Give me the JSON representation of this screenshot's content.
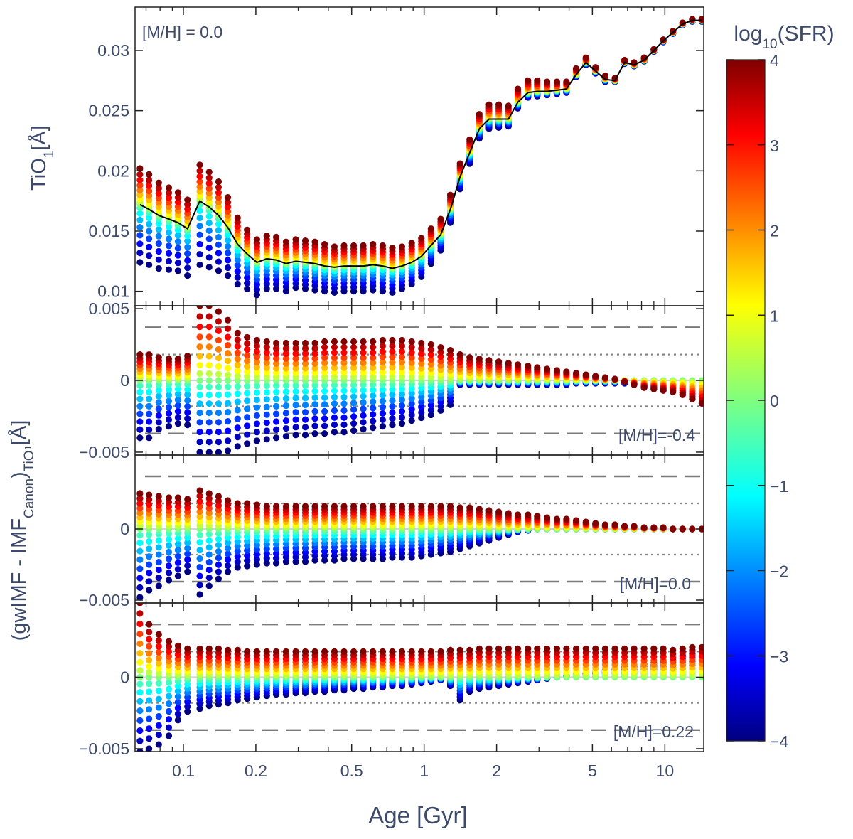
{
  "chart_data": {
    "type": "scatter",
    "x_label": "Age [Gyr]",
    "x_scale": "log",
    "x_range": [
      0.063,
      14.5
    ],
    "x_ticks": [
      {
        "value": 0.1,
        "label": "0.1"
      },
      {
        "value": 0.2,
        "label": "0.2"
      },
      {
        "value": 0.5,
        "label": "0.5"
      },
      {
        "value": 1,
        "label": "1"
      },
      {
        "value": 2,
        "label": "2"
      },
      {
        "value": 5,
        "label": "5"
      },
      {
        "value": 10,
        "label": "10"
      }
    ],
    "ages": [
      0.066,
      0.072,
      0.079,
      0.087,
      0.095,
      0.104,
      0.117,
      0.128,
      0.14,
      0.153,
      0.168,
      0.184,
      0.202,
      0.222,
      0.243,
      0.267,
      0.293,
      0.321,
      0.352,
      0.386,
      0.424,
      0.465,
      0.51,
      0.559,
      0.613,
      0.673,
      0.738,
      0.809,
      0.888,
      0.974,
      1.068,
      1.172,
      1.285,
      1.41,
      1.546,
      1.696,
      1.861,
      2.041,
      2.24,
      2.45,
      2.7,
      2.95,
      3.24,
      3.56,
      3.9,
      4.28,
      4.7,
      5.15,
      5.65,
      6.2,
      6.8,
      7.45,
      8.2,
      9.0,
      9.85,
      10.8,
      11.85,
      13.0,
      14.25
    ],
    "colorbar": {
      "label": "log10(SFR)",
      "range": [
        -4,
        4
      ],
      "ticks": [
        {
          "value": 4,
          "label": "4"
        },
        {
          "value": 3,
          "label": "3"
        },
        {
          "value": 2,
          "label": "2"
        },
        {
          "value": 1,
          "label": "1"
        },
        {
          "value": 0,
          "label": "0"
        },
        {
          "value": -1,
          "label": "−1"
        },
        {
          "value": -2,
          "label": "−2"
        },
        {
          "value": -3,
          "label": "−3"
        },
        {
          "value": -4,
          "label": "−4"
        }
      ]
    },
    "panels": [
      {
        "id": "tio1",
        "y_label": "TiO1[Å]",
        "y_range": [
          0.0088,
          0.0336
        ],
        "y_ticks": [
          {
            "value": 0.01,
            "label": "0.01"
          },
          {
            "value": 0.015,
            "label": "0.015"
          },
          {
            "value": 0.02,
            "label": "0.02"
          },
          {
            "value": 0.025,
            "label": "0.025"
          },
          {
            "value": 0.03,
            "label": "0.03"
          }
        ],
        "annotation": "[M/H] = 0.0",
        "canonical_line_color": "#000000"
      },
      {
        "id": "diff-m04",
        "y_range": [
          -0.0052,
          0.0052
        ],
        "y_ticks": [
          {
            "value": -0.005,
            "label": "−0.005"
          },
          {
            "value": 0,
            "label": "0"
          },
          {
            "value": 0.005,
            "label": "0.005"
          }
        ],
        "annotation": "[M/H]=-0.4",
        "dashed_levels": [
          -0.0037,
          0.0037
        ],
        "dotted_levels": [
          -0.0018,
          0.0018
        ]
      },
      {
        "id": "diff-000",
        "y_range": [
          -0.0052,
          0.0052
        ],
        "y_ticks": [
          {
            "value": -0.005,
            "label": "−0.005"
          },
          {
            "value": 0,
            "label": "0"
          }
        ],
        "annotation": "[M/H]=0.0",
        "dashed_levels": [
          -0.0037,
          0.0037
        ],
        "dotted_levels": [
          -0.0018,
          0.0018
        ]
      },
      {
        "id": "diff-022",
        "y_range": [
          -0.0052,
          0.0052
        ],
        "y_ticks": [
          {
            "value": -0.005,
            "label": "−0.005"
          },
          {
            "value": 0,
            "label": "0"
          }
        ],
        "annotation": "[M/H]=0.22",
        "dashed_levels": [
          -0.0037,
          0.0037
        ],
        "dotted_levels": [
          -0.0018,
          0.0018
        ]
      }
    ],
    "shared_y_label": "(gwIMF - IMFCanon)TiO1[Å]",
    "sfr_levels": [
      -4,
      -3.5,
      -3,
      -2.5,
      -2,
      -1.5,
      -1,
      -0.5,
      0,
      0.5,
      1,
      1.5,
      2,
      2.5,
      3,
      3.5,
      4
    ],
    "tio1_canonical": [
      0.0172,
      0.0168,
      0.0163,
      0.016,
      0.0157,
      0.0152,
      0.0175,
      0.017,
      0.0163,
      0.0153,
      0.0139,
      0.0131,
      0.0124,
      0.0127,
      0.0126,
      0.0123,
      0.0125,
      0.0124,
      0.0123,
      0.0121,
      0.012,
      0.0121,
      0.0121,
      0.0121,
      0.0122,
      0.0121,
      0.0119,
      0.0121,
      0.0124,
      0.0129,
      0.0138,
      0.0147,
      0.0168,
      0.0195,
      0.0215,
      0.0235,
      0.0243,
      0.0243,
      0.0243,
      0.0257,
      0.0265,
      0.0266,
      0.0266,
      0.0267,
      0.0268,
      0.028,
      0.029,
      0.0283,
      0.0276,
      0.0275,
      0.029,
      0.0288,
      0.0292,
      0.03,
      0.0308,
      0.0315,
      0.0322,
      0.0325,
      0.0325
    ],
    "tio1_spread_high": [
      0.003,
      0.0029,
      0.0027,
      0.0026,
      0.0025,
      0.0024,
      0.003,
      0.0029,
      0.0028,
      0.0025,
      0.0022,
      0.002,
      0.0019,
      0.0019,
      0.0019,
      0.0018,
      0.0018,
      0.0018,
      0.0018,
      0.0018,
      0.0017,
      0.0017,
      0.0017,
      0.0017,
      0.0017,
      0.0017,
      0.0017,
      0.0016,
      0.0016,
      0.0015,
      0.0014,
      0.0013,
      0.0012,
      0.0011,
      0.0011,
      0.0012,
      0.0012,
      0.0012,
      0.0011,
      0.0011,
      0.001,
      0.0009,
      0.0008,
      0.0007,
      0.0006,
      0.0005,
      0.0004,
      0.0003,
      0.0003,
      0.0002,
      0.0002,
      0.0002,
      0.0002,
      0.0001,
      0.0001,
      0.0001,
      0.0001,
      0.0001,
      0.0001
    ],
    "tio1_spread_low": [
      0.0048,
      0.0046,
      0.0044,
      0.0042,
      0.004,
      0.0039,
      0.0053,
      0.005,
      0.0046,
      0.004,
      0.0033,
      0.0029,
      0.0027,
      0.0025,
      0.0024,
      0.0023,
      0.0022,
      0.0022,
      0.0022,
      0.0021,
      0.0021,
      0.0021,
      0.0021,
      0.0021,
      0.0021,
      0.0021,
      0.002,
      0.0019,
      0.0018,
      0.0017,
      0.0015,
      0.0013,
      0.0011,
      0.001,
      0.0009,
      0.0008,
      0.0008,
      0.0007,
      0.0006,
      0.0005,
      0.0004,
      0.0004,
      0.0003,
      0.0003,
      0.0003,
      0.0002,
      0.0002,
      0.0002,
      0.0002,
      0.0001,
      0.0001,
      0.0001,
      0.0001,
      0.0001,
      0.0001,
      0.0001,
      0.0001,
      0.0001,
      0.0001
    ],
    "diff_high": [
      [
        0.0018,
        0.0018,
        0.0016,
        0.0015,
        0.0015,
        0.0017,
        0.0052,
        0.0052,
        0.0048,
        0.0042,
        0.0033,
        0.003,
        0.0028,
        0.0027,
        0.0026,
        0.0026,
        0.0026,
        0.0026,
        0.0026,
        0.0027,
        0.0027,
        0.0027,
        0.0027,
        0.0027,
        0.0027,
        0.0028,
        0.0028,
        0.0028,
        0.0027,
        0.0026,
        0.0025,
        0.0023,
        0.0021,
        0.0018,
        0.0016,
        0.0015,
        0.0014,
        0.0013,
        0.0012,
        0.0011,
        0.001,
        0.0009,
        0.0008,
        0.0007,
        0.0006,
        0.0005,
        0.0004,
        0.0003,
        0.0002,
        0.0001,
        -0.0001,
        -0.0003,
        -0.0005,
        -0.0006,
        -0.0007,
        -0.0008,
        -0.001,
        -0.0013,
        -0.0016
      ],
      [
        0.0025,
        0.0024,
        0.0023,
        0.0022,
        0.0022,
        0.0021,
        0.0027,
        0.0025,
        0.0023,
        0.002,
        0.0018,
        0.0018,
        0.0017,
        0.0016,
        0.0016,
        0.0016,
        0.0016,
        0.0016,
        0.0016,
        0.0016,
        0.0016,
        0.0016,
        0.0016,
        0.0016,
        0.0016,
        0.0016,
        0.0016,
        0.0016,
        0.0016,
        0.0016,
        0.0016,
        0.0016,
        0.0016,
        0.0015,
        0.0015,
        0.0014,
        0.0013,
        0.0012,
        0.0011,
        0.001,
        0.001,
        0.0009,
        0.0008,
        0.0007,
        0.0007,
        0.0006,
        0.0005,
        0.0004,
        0.0003,
        0.0003,
        0.0002,
        0.0002,
        0.0001,
        0.0001,
        0.0001,
        0.0,
        0.0,
        0.0,
        0.0
      ],
      [
        0.0052,
        0.0037,
        0.003,
        0.0025,
        0.0022,
        0.002,
        0.002,
        0.002,
        0.002,
        0.0019,
        0.0019,
        0.0018,
        0.0018,
        0.0018,
        0.0018,
        0.0018,
        0.0018,
        0.0018,
        0.0018,
        0.0018,
        0.0018,
        0.0018,
        0.0018,
        0.0018,
        0.0018,
        0.0018,
        0.0018,
        0.0018,
        0.0018,
        0.0018,
        0.0018,
        0.0018,
        0.0019,
        0.0019,
        0.0019,
        0.002,
        0.002,
        0.002,
        0.002,
        0.002,
        0.002,
        0.002,
        0.002,
        0.002,
        0.002,
        0.002,
        0.002,
        0.002,
        0.002,
        0.002,
        0.002,
        0.002,
        0.002,
        0.002,
        0.002,
        0.0019,
        0.002,
        0.0021,
        0.0021
      ]
    ],
    "diff_low": [
      [
        -0.004,
        -0.004,
        -0.0034,
        -0.0032,
        -0.003,
        -0.0031,
        -0.005,
        -0.005,
        -0.005,
        -0.0049,
        -0.0046,
        -0.0044,
        -0.0042,
        -0.0041,
        -0.004,
        -0.0039,
        -0.0038,
        -0.0038,
        -0.0037,
        -0.0037,
        -0.0036,
        -0.0036,
        -0.0035,
        -0.0034,
        -0.0033,
        -0.0032,
        -0.0031,
        -0.003,
        -0.0028,
        -0.0026,
        -0.0024,
        -0.0021,
        -0.0017,
        -0.0003,
        -0.0003,
        -0.0003,
        -0.0003,
        -0.0003,
        -0.0003,
        -0.0003,
        -0.0003,
        -0.0003,
        -0.0003,
        -0.0003,
        -0.0003,
        -0.0002,
        -0.0002,
        -0.0002,
        -0.0002,
        -0.0002,
        -0.0002,
        -0.0003,
        -0.0005,
        -0.0006,
        -0.0007,
        -0.0008,
        -0.001,
        -0.0013,
        -0.0016
      ],
      [
        -0.0048,
        -0.0043,
        -0.004,
        -0.0036,
        -0.0033,
        -0.003,
        -0.0046,
        -0.004,
        -0.0035,
        -0.003,
        -0.0027,
        -0.0026,
        -0.0025,
        -0.0024,
        -0.0024,
        -0.0023,
        -0.0023,
        -0.0023,
        -0.0022,
        -0.0022,
        -0.0022,
        -0.0021,
        -0.0021,
        -0.0021,
        -0.0021,
        -0.0021,
        -0.002,
        -0.002,
        -0.002,
        -0.0019,
        -0.0018,
        -0.0017,
        -0.0016,
        -0.0014,
        -0.0012,
        -0.001,
        -0.0008,
        -0.0006,
        -0.0004,
        -0.0002,
        -0.0001,
        0.0,
        0.0,
        0.0,
        0.0,
        0.0,
        0.0,
        0.0,
        0.0,
        0.0,
        0.0,
        0.0,
        0.0,
        0.0,
        0.0,
        0.0,
        0.0,
        0.0,
        0.0
      ],
      [
        -0.0052,
        -0.005,
        -0.0047,
        -0.0041,
        -0.003,
        -0.0024,
        -0.0022,
        -0.002,
        -0.0019,
        -0.0018,
        -0.0016,
        -0.0015,
        -0.0014,
        -0.0013,
        -0.0012,
        -0.0012,
        -0.0011,
        -0.0011,
        -0.001,
        -0.001,
        -0.0009,
        -0.0009,
        -0.0008,
        -0.0008,
        -0.0007,
        -0.0007,
        -0.0006,
        -0.0006,
        -0.0005,
        -0.0004,
        -0.0003,
        -0.0002,
        -0.0006,
        -0.0016,
        -0.001,
        -0.0008,
        -0.0007,
        -0.0006,
        -0.0005,
        -0.0004,
        -0.0003,
        -0.0002,
        -0.0001,
        0.0,
        0.0001,
        0.0002,
        0.0003,
        0.0004,
        0.0005,
        0.0006,
        0.0007,
        0.0008,
        0.0009,
        0.001,
        0.0011,
        0.0012,
        0.0018,
        0.0019,
        0.002
      ]
    ]
  }
}
